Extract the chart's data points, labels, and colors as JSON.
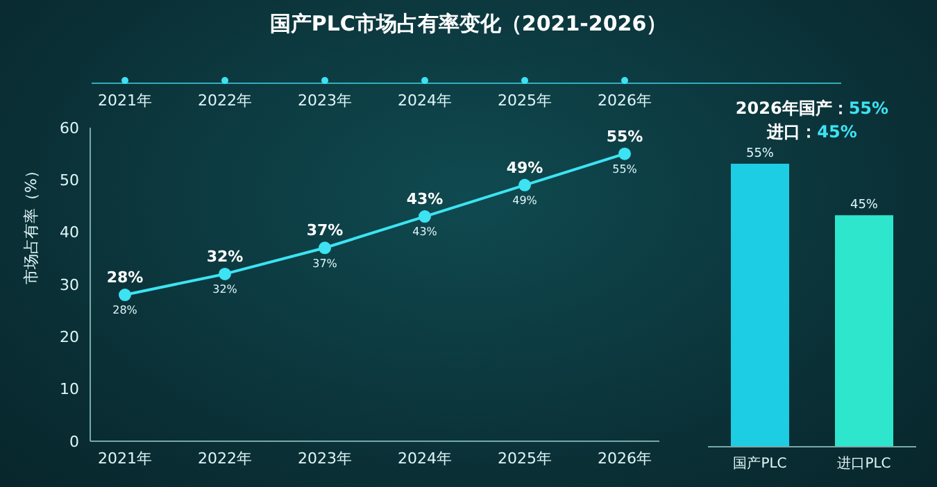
{
  "chart_data": [
    {
      "type": "line",
      "title": "国产PLC市场占有率变化（2021-2026）",
      "ylabel": "市场占有率（%）",
      "categories": [
        "2021年",
        "2022年",
        "2023年",
        "2024年",
        "2025年",
        "2026年"
      ],
      "series": [
        {
          "color": "#3de3f2",
          "values": [
            28,
            32,
            37,
            43,
            49,
            55
          ],
          "value_labels": [
            "28%",
            "32%",
            "37%",
            "43%",
            "49%",
            "55%"
          ]
        }
      ],
      "annotations": [
        {
          "text": "28%",
          "x": "2021年",
          "y": 28
        },
        {
          "text": "32%",
          "x": "2022年",
          "y": 32
        },
        {
          "text": "37%",
          "x": "2023年",
          "y": 37
        },
        {
          "text": "43%",
          "x": "2024年",
          "y": 43
        },
        {
          "text": "49%",
          "x": "2025年",
          "y": 49
        },
        {
          "text": "55%",
          "x": "2026年",
          "y": 55
        }
      ],
      "ylim": [
        0,
        60
      ],
      "yticks": [
        0,
        10,
        20,
        30,
        40,
        50,
        60
      ],
      "grid": false,
      "marker": "circle",
      "line_style": "solid",
      "legend": false
    },
    {
      "type": "bar",
      "title": "2026年国产：55%",
      "subtitle": "进口：45%",
      "categories": [
        "国产PLC",
        "进口PLC"
      ],
      "values": [
        55,
        45
      ],
      "colors": [
        "#1ccde4",
        "#2ee6cc"
      ],
      "value_labels": [
        "55%",
        "45%"
      ],
      "legend": false
    }
  ]
}
